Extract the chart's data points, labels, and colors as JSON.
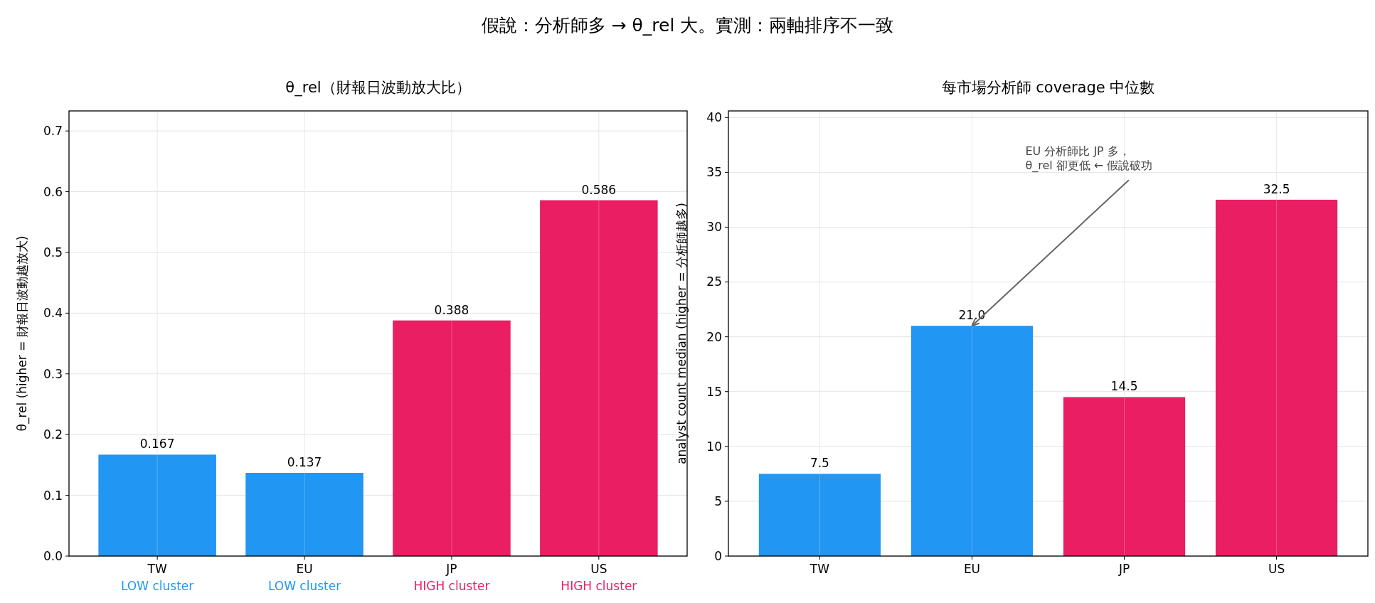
{
  "chart_data": [
    {
      "type": "bar",
      "title": "θ_rel（財報日波動放大比）",
      "ylabel": "θ_rel (higher = 財報日波動越放大)",
      "categories": [
        "TW\nLOW cluster",
        "EU\nLOW cluster",
        "JP\nHIGH cluster",
        "US\nHIGH cluster"
      ],
      "values": [
        0.167,
        0.137,
        0.388,
        0.586
      ],
      "value_labels": [
        "0.167",
        "0.137",
        "0.388",
        "0.586"
      ],
      "colors": [
        "#2196f3",
        "#2196f3",
        "#e91e63",
        "#e91e63"
      ],
      "ylim": [
        0,
        0.733
      ],
      "yticks": [
        {
          "value": 0,
          "label": "0.0"
        },
        0.1,
        0.2,
        0.3,
        0.4,
        0.5,
        0.6,
        0.7
      ],
      "grid": true,
      "annotations": [
        "假說：分析師多 → θ_rel 大。實測：兩軸排序不一致"
      ]
    },
    {
      "type": "bar",
      "title": "每市場分析師 coverage 中位數",
      "ylabel": "analyst count median (higher = 分析師越多)",
      "categories": [
        "TW",
        "EU",
        "JP",
        "US"
      ],
      "values": [
        7.5,
        21.0,
        14.5,
        32.5
      ],
      "value_labels": [
        "7.5",
        "21.0",
        "14.5",
        "32.5"
      ],
      "colors": [
        "#2196f3",
        "#2196f3",
        "#e91e63",
        "#e91e63"
      ],
      "ylim": [
        0,
        40.6
      ],
      "yticks": [
        0,
        5,
        10,
        15,
        20,
        25,
        30,
        35,
        40
      ],
      "grid": true,
      "annotations": [
        {
          "text": "EU 分析師比 JP 多，\nθ_rel 卻更低 ← 假說破功",
          "x": "EU",
          "y": 21.0
        }
      ]
    }
  ]
}
